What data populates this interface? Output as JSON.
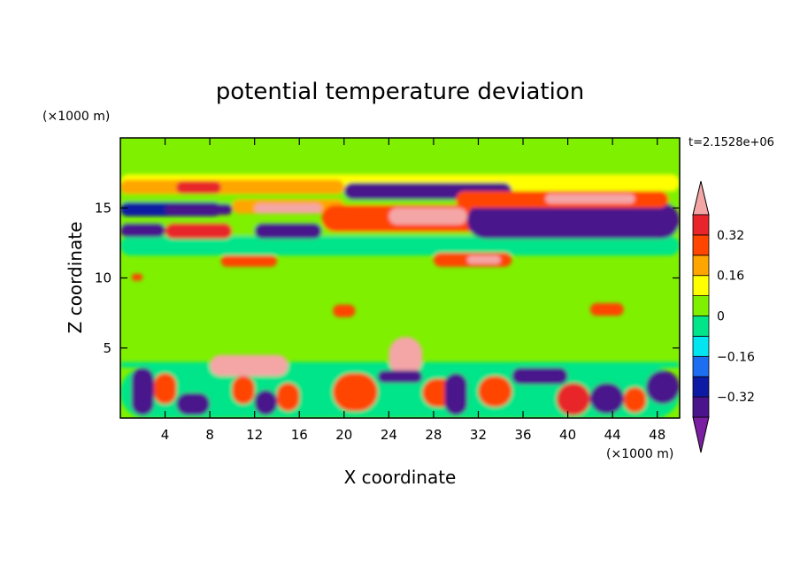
{
  "chart_data": {
    "type": "heatmap",
    "title": "potential temperature deviation",
    "xlabel": "X coordinate",
    "ylabel": "Z coordinate",
    "x_unit": "(×1000 m)",
    "y_unit": "(×1000 m)",
    "time_label": "t=2.1528e+06",
    "xlim": [
      0,
      50
    ],
    "ylim": [
      0,
      20
    ],
    "x_ticks": [
      4,
      8,
      12,
      16,
      20,
      24,
      28,
      32,
      36,
      40,
      44,
      48
    ],
    "y_ticks": [
      5,
      10,
      15
    ],
    "grid": false,
    "colorbar": {
      "levels": [
        -0.4,
        -0.32,
        -0.24,
        -0.16,
        -0.08,
        0,
        0.08,
        0.16,
        0.24,
        0.32,
        0.4
      ],
      "tick_values": [
        0.32,
        0.16,
        0,
        -0.16,
        -0.32
      ],
      "tick_labels": [
        "0.32",
        "0.16",
        "0",
        "−0.16",
        "−0.32"
      ],
      "colors": [
        "#7b1fa2",
        "#4a148c",
        "#0d1aa3",
        "#1e6ef2",
        "#00e5f0",
        "#00e589",
        "#7ff000",
        "#ffff00",
        "#ffa500",
        "#ff4500",
        "#e8252a",
        "#f4a6a6"
      ],
      "extends": "both"
    },
    "field_background": "#7ff000",
    "regions": [
      {
        "value": -0.02,
        "x": [
          0,
          50
        ],
        "z": [
          11.6,
          13.0
        ]
      },
      {
        "value": 0.05,
        "x": [
          0,
          50
        ],
        "z": [
          13.0,
          14.0
        ]
      },
      {
        "value": 0.1,
        "x": [
          0,
          50
        ],
        "z": [
          16.2,
          17.4
        ]
      },
      {
        "value": 0.02,
        "x": [
          0,
          50
        ],
        "z": [
          15.2,
          16.2
        ]
      },
      {
        "value": -0.02,
        "x": [
          0,
          50
        ],
        "z": [
          3.6,
          4.0
        ]
      },
      {
        "value": -0.04,
        "x": [
          0,
          50
        ],
        "z": [
          0,
          3.6
        ]
      },
      {
        "value": 0.18,
        "x": [
          0,
          20
        ],
        "z": [
          16.0,
          17.0
        ]
      },
      {
        "value": 0.32,
        "x": [
          5,
          9
        ],
        "z": [
          16.0,
          16.9
        ]
      },
      {
        "value": -0.36,
        "x": [
          20,
          35
        ],
        "z": [
          15.6,
          16.8
        ]
      },
      {
        "value": -0.3,
        "x": [
          0,
          9
        ],
        "z": [
          14.4,
          15.4
        ]
      },
      {
        "value": -0.4,
        "x": [
          4,
          10
        ],
        "z": [
          14.5,
          15.3
        ]
      },
      {
        "value": 0.2,
        "x": [
          10,
          20
        ],
        "z": [
          14.6,
          15.6
        ]
      },
      {
        "value": 0.4,
        "x": [
          12,
          18
        ],
        "z": [
          14.6,
          15.3
        ]
      },
      {
        "value": -0.33,
        "x": [
          0,
          4
        ],
        "z": [
          12.9,
          13.9
        ]
      },
      {
        "value": 0.35,
        "x": [
          4,
          10
        ],
        "z": [
          12.8,
          13.9
        ]
      },
      {
        "value": -0.38,
        "x": [
          12,
          18
        ],
        "z": [
          12.8,
          13.9
        ]
      },
      {
        "value": 0.25,
        "x": [
          18,
          33
        ],
        "z": [
          13.3,
          15.2
        ]
      },
      {
        "value": 0.4,
        "x": [
          24,
          31
        ],
        "z": [
          13.8,
          15.0
        ]
      },
      {
        "value": -0.4,
        "x": [
          31,
          50
        ],
        "z": [
          12.8,
          15.4
        ]
      },
      {
        "value": 0.3,
        "x": [
          30,
          49
        ],
        "z": [
          15.0,
          16.2
        ]
      },
      {
        "value": 0.4,
        "x": [
          38,
          46
        ],
        "z": [
          15.3,
          16.0
        ]
      },
      {
        "value": 0.25,
        "x": [
          9,
          14
        ],
        "z": [
          10.8,
          11.6
        ]
      },
      {
        "value": 0.3,
        "x": [
          28,
          35
        ],
        "z": [
          10.8,
          11.8
        ]
      },
      {
        "value": 0.4,
        "x": [
          31,
          34
        ],
        "z": [
          11.0,
          11.6
        ]
      },
      {
        "value": 0.3,
        "x": [
          1,
          2
        ],
        "z": [
          9.8,
          10.3
        ]
      },
      {
        "value": 0.3,
        "x": [
          19,
          21
        ],
        "z": [
          7.2,
          8.1
        ]
      },
      {
        "value": 0.3,
        "x": [
          42,
          45
        ],
        "z": [
          7.3,
          8.2
        ]
      },
      {
        "value": 0.4,
        "x": [
          8,
          15
        ],
        "z": [
          3.0,
          4.5
        ]
      },
      {
        "value": 0.4,
        "x": [
          24,
          27
        ],
        "z": [
          3.0,
          5.8
        ]
      },
      {
        "value": -0.38,
        "x": [
          1,
          3
        ],
        "z": [
          0.2,
          3.6
        ]
      },
      {
        "value": 0.28,
        "x": [
          3,
          5
        ],
        "z": [
          1.0,
          3.2
        ]
      },
      {
        "value": -0.36,
        "x": [
          5,
          8
        ],
        "z": [
          0.2,
          1.8
        ]
      },
      {
        "value": 0.3,
        "x": [
          10,
          12
        ],
        "z": [
          1.0,
          3.0
        ]
      },
      {
        "value": -0.36,
        "x": [
          12,
          14
        ],
        "z": [
          0.2,
          2.0
        ]
      },
      {
        "value": 0.3,
        "x": [
          14,
          16
        ],
        "z": [
          0.5,
          2.5
        ]
      },
      {
        "value": 0.3,
        "x": [
          19,
          23
        ],
        "z": [
          0.5,
          3.2
        ]
      },
      {
        "value": -0.35,
        "x": [
          23,
          27
        ],
        "z": [
          2.5,
          3.4
        ]
      },
      {
        "value": 0.25,
        "x": [
          27,
          30
        ],
        "z": [
          0.8,
          2.8
        ]
      },
      {
        "value": -0.4,
        "x": [
          29,
          31
        ],
        "z": [
          0.2,
          3.2
        ]
      },
      {
        "value": 0.25,
        "x": [
          32,
          35
        ],
        "z": [
          0.8,
          3.0
        ]
      },
      {
        "value": -0.35,
        "x": [
          35,
          40
        ],
        "z": [
          2.4,
          3.6
        ]
      },
      {
        "value": 0.35,
        "x": [
          39,
          42
        ],
        "z": [
          0.2,
          2.5
        ]
      },
      {
        "value": -0.35,
        "x": [
          42,
          45
        ],
        "z": [
          0.3,
          2.5
        ]
      },
      {
        "value": 0.3,
        "x": [
          45,
          47
        ],
        "z": [
          0.4,
          2.2
        ]
      },
      {
        "value": -0.35,
        "x": [
          47,
          50
        ],
        "z": [
          1.0,
          3.4
        ]
      }
    ]
  }
}
